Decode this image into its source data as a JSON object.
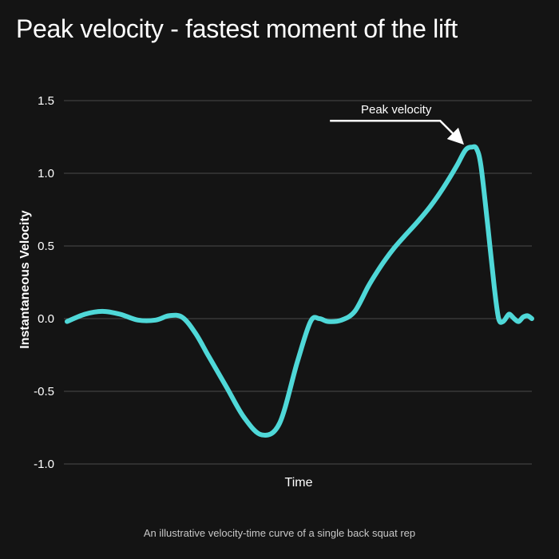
{
  "title": "Peak velocity - fastest moment of the lift",
  "caption": "An illustrative velocity-time curve of a single back squat rep",
  "colors": {
    "background": "#141414",
    "line": "#4fd8d8",
    "grid": "#4a4a4a",
    "text": "#ffffff"
  },
  "chart_data": {
    "type": "line",
    "title": "Peak velocity - fastest moment of the lift",
    "xlabel": "Time",
    "ylabel": "Instantaneous Velocity",
    "ylim": [
      -1.0,
      1.5
    ],
    "yticks": [
      -1.0,
      -0.5,
      0.0,
      0.5,
      1.0,
      1.5
    ],
    "ytick_labels": [
      "-1.0",
      "-0.5",
      "0.0",
      "0.5",
      "1.0",
      "1.5"
    ],
    "xlim": [
      0,
      100
    ],
    "grid": "horizontal",
    "series": [
      {
        "x": [
          0,
          4,
          8,
          12,
          16,
          20,
          23,
          26,
          29,
          32,
          36,
          40,
          44,
          48,
          52,
          55,
          57,
          59,
          62,
          65,
          68,
          70,
          72,
          74,
          76,
          79,
          82,
          85,
          88,
          90,
          91.5,
          92.5,
          93.5,
          95,
          96.5,
          97.5,
          98.5,
          99.5,
          100,
          101,
          102,
          103,
          104,
          105
        ],
        "y": [
          -0.02,
          0.03,
          0.05,
          0.03,
          -0.01,
          -0.01,
          0.02,
          0.01,
          -0.1,
          -0.26,
          -0.47,
          -0.68,
          -0.8,
          -0.72,
          -0.3,
          -0.02,
          0.0,
          -0.02,
          -0.01,
          0.05,
          0.22,
          0.32,
          0.41,
          0.49,
          0.56,
          0.66,
          0.77,
          0.9,
          1.05,
          1.16,
          1.18,
          1.17,
          1.05,
          0.65,
          0.22,
          0.0,
          -0.02,
          0.02,
          0.03,
          0.0,
          -0.02,
          0.01,
          0.02,
          0.0
        ]
      }
    ],
    "annotations": [
      {
        "text": "Peak velocity",
        "x": 91.5,
        "y": 1.18
      }
    ]
  }
}
